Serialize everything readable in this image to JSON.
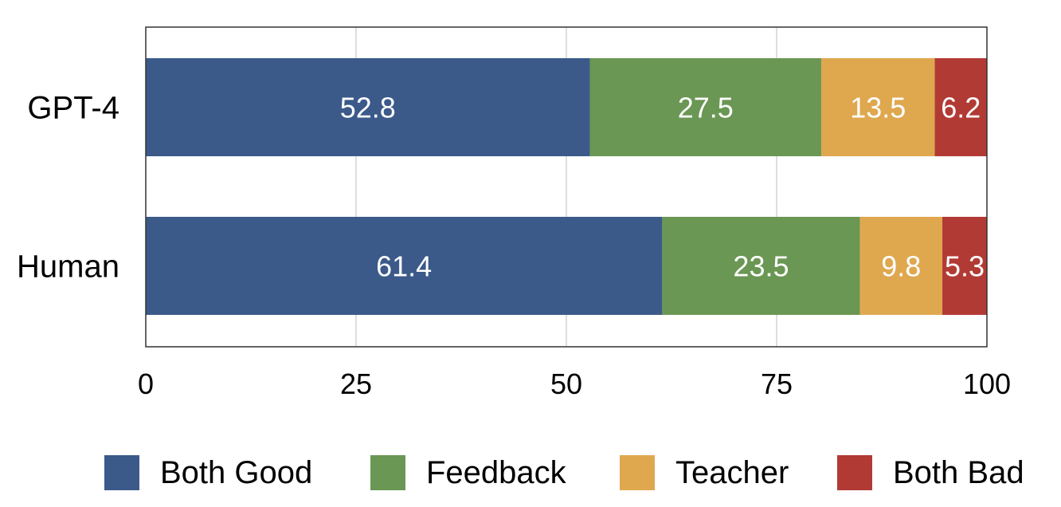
{
  "chart_data": {
    "type": "bar",
    "orientation": "horizontal",
    "stacked": true,
    "categories": [
      "GPT-4",
      "Human"
    ],
    "series": [
      {
        "name": "Both Good",
        "color": "#3b5a8a",
        "values": [
          52.8,
          61.4
        ]
      },
      {
        "name": "Feedback",
        "color": "#6a9753",
        "values": [
          27.5,
          23.5
        ]
      },
      {
        "name": "Teacher",
        "color": "#dfa84f",
        "values": [
          13.5,
          9.8
        ]
      },
      {
        "name": "Both Bad",
        "color": "#b23a35",
        "values": [
          6.2,
          5.3
        ]
      }
    ],
    "data_labels": [
      [
        "52.8",
        "27.5",
        "13.5",
        "6.2"
      ],
      [
        "61.4",
        "23.5",
        "9.8",
        "5.3"
      ]
    ],
    "xlim": [
      0,
      100
    ],
    "xticks": [
      "0",
      "25",
      "50",
      "75",
      "100"
    ],
    "xtick_values": [
      0,
      25,
      50,
      75,
      100
    ],
    "grid": "vertical",
    "legend": "bottom",
    "title": "",
    "xlabel": "",
    "ylabel": ""
  }
}
